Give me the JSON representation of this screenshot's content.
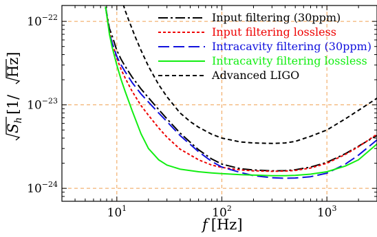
{
  "chart_data": {
    "type": "line",
    "xscale": "log",
    "yscale": "log",
    "xlim": [
      3,
      3000
    ],
    "ylim": [
      7e-25,
      1.55e-22
    ],
    "grid": true,
    "grid_color": "#f0a050",
    "legend_placement": "top-right",
    "xlabel": {
      "symbol": "f",
      "unit": "[Hz]"
    },
    "ylabel": {
      "symbol": "S",
      "subscript": "h",
      "unit_open": "[1/",
      "unit_inner": "Hz",
      "unit_close": "]"
    },
    "x_ticks": [
      {
        "value": 10,
        "base": "10",
        "exp": "1"
      },
      {
        "value": 100,
        "base": "10",
        "exp": "2"
      },
      {
        "value": 1000,
        "base": "10",
        "exp": "3"
      }
    ],
    "y_ticks": [
      {
        "value": 1e-22,
        "base": "10",
        "exp": "−22"
      },
      {
        "value": 1e-23,
        "base": "10",
        "exp": "−23"
      },
      {
        "value": 1e-24,
        "base": "10",
        "exp": "−24"
      }
    ],
    "series": [
      {
        "name": "Input filtering (30ppm)",
        "color": "#000000",
        "dash": "14,4,3,4",
        "width": 2,
        "x": [
          7.8,
          8.5,
          9,
          10,
          11,
          12,
          14,
          17,
          20,
          25,
          30,
          40,
          60,
          80,
          100,
          150,
          200,
          300,
          400,
          500,
          700,
          1000,
          1500,
          2000,
          3000
        ],
        "y": [
          1.5e-22,
          8.2e-23,
          6.8e-23,
          4.5e-23,
          3.5e-23,
          2.9e-23,
          2.15e-23,
          1.55e-23,
          1.22e-23,
          8.8e-24,
          6.8e-24,
          4.6e-24,
          2.9e-24,
          2.25e-24,
          1.95e-24,
          1.72e-24,
          1.66e-24,
          1.62e-24,
          1.63e-24,
          1.67e-24,
          1.8e-24,
          2.05e-24,
          2.6e-24,
          3.2e-24,
          4.3e-24
        ]
      },
      {
        "name": "Input filtering lossless",
        "color": "#ee0000",
        "dash": "4,3",
        "width": 2,
        "x": [
          7.8,
          8.5,
          9,
          10,
          11,
          12,
          14,
          17,
          20,
          25,
          30,
          40,
          60,
          80,
          100,
          150,
          200,
          300,
          400,
          500,
          700,
          1000,
          1500,
          2000,
          3000
        ],
        "y": [
          1.5e-22,
          7.5e-23,
          5.7e-23,
          3.6e-23,
          2.65e-23,
          2.1e-23,
          1.45e-23,
          9.8e-24,
          7.5e-24,
          5.3e-24,
          4.1e-24,
          2.95e-24,
          2.2e-24,
          1.9e-24,
          1.78e-24,
          1.66e-24,
          1.62e-24,
          1.6e-24,
          1.61e-24,
          1.64e-24,
          1.75e-24,
          2e-24,
          2.55e-24,
          3.15e-24,
          4.45e-24
        ]
      },
      {
        "name": "Intracavity filtering (30ppm)",
        "color": "#1010dd",
        "dash": "16,6",
        "width": 2,
        "x": [
          7.8,
          8.5,
          9,
          10,
          11,
          12,
          14,
          17,
          20,
          25,
          30,
          40,
          60,
          80,
          100,
          150,
          200,
          300,
          400,
          500,
          700,
          1000,
          1500,
          2000,
          3000
        ],
        "y": [
          1.5e-22,
          7.3e-23,
          5.6e-23,
          3.8e-23,
          3e-23,
          2.5e-23,
          1.85e-23,
          1.35e-23,
          1.08e-23,
          8e-24,
          6.3e-24,
          4.3e-24,
          2.75e-24,
          2.1e-24,
          1.8e-24,
          1.55e-24,
          1.42e-24,
          1.34e-24,
          1.32e-24,
          1.33e-24,
          1.38e-24,
          1.52e-24,
          1.95e-24,
          2.5e-24,
          3.8e-24
        ]
      },
      {
        "name": "Intracavity filtering lossless",
        "color": "#11ee11",
        "dash": "",
        "width": 2,
        "x": [
          7.8,
          8.5,
          9,
          10,
          11,
          12,
          14,
          17,
          20,
          25,
          30,
          40,
          60,
          80,
          100,
          150,
          200,
          300,
          400,
          500,
          700,
          1000,
          1500,
          2000,
          3000
        ],
        "y": [
          1.5e-22,
          7e-23,
          5e-23,
          3e-23,
          2e-23,
          1.45e-23,
          8.5e-24,
          4.5e-24,
          3e-24,
          2.2e-24,
          1.9e-24,
          1.7e-24,
          1.58e-24,
          1.53e-24,
          1.5e-24,
          1.46e-24,
          1.44e-24,
          1.42e-24,
          1.42e-24,
          1.43e-24,
          1.48e-24,
          1.58e-24,
          1.85e-24,
          2.2e-24,
          3.4e-24
        ]
      },
      {
        "name": "Advanced LIGO",
        "color": "#000000",
        "dash": "6,4",
        "width": 2,
        "x": [
          11.5,
          12,
          13,
          15,
          17,
          20,
          25,
          30,
          40,
          50,
          60,
          80,
          100,
          150,
          200,
          300,
          400,
          500,
          700,
          1000,
          1500,
          2000,
          3000
        ],
        "y": [
          1.6e-22,
          1.35e-22,
          1.03e-22,
          6.5e-23,
          4.5e-23,
          2.9e-23,
          1.75e-23,
          1.25e-23,
          8e-24,
          6.3e-24,
          5.4e-24,
          4.45e-24,
          4e-24,
          3.6e-24,
          3.5e-24,
          3.45e-24,
          3.5e-24,
          3.65e-24,
          4.2e-24,
          5e-24,
          6.8e-24,
          8.6e-24,
          1.2e-23
        ]
      }
    ]
  }
}
